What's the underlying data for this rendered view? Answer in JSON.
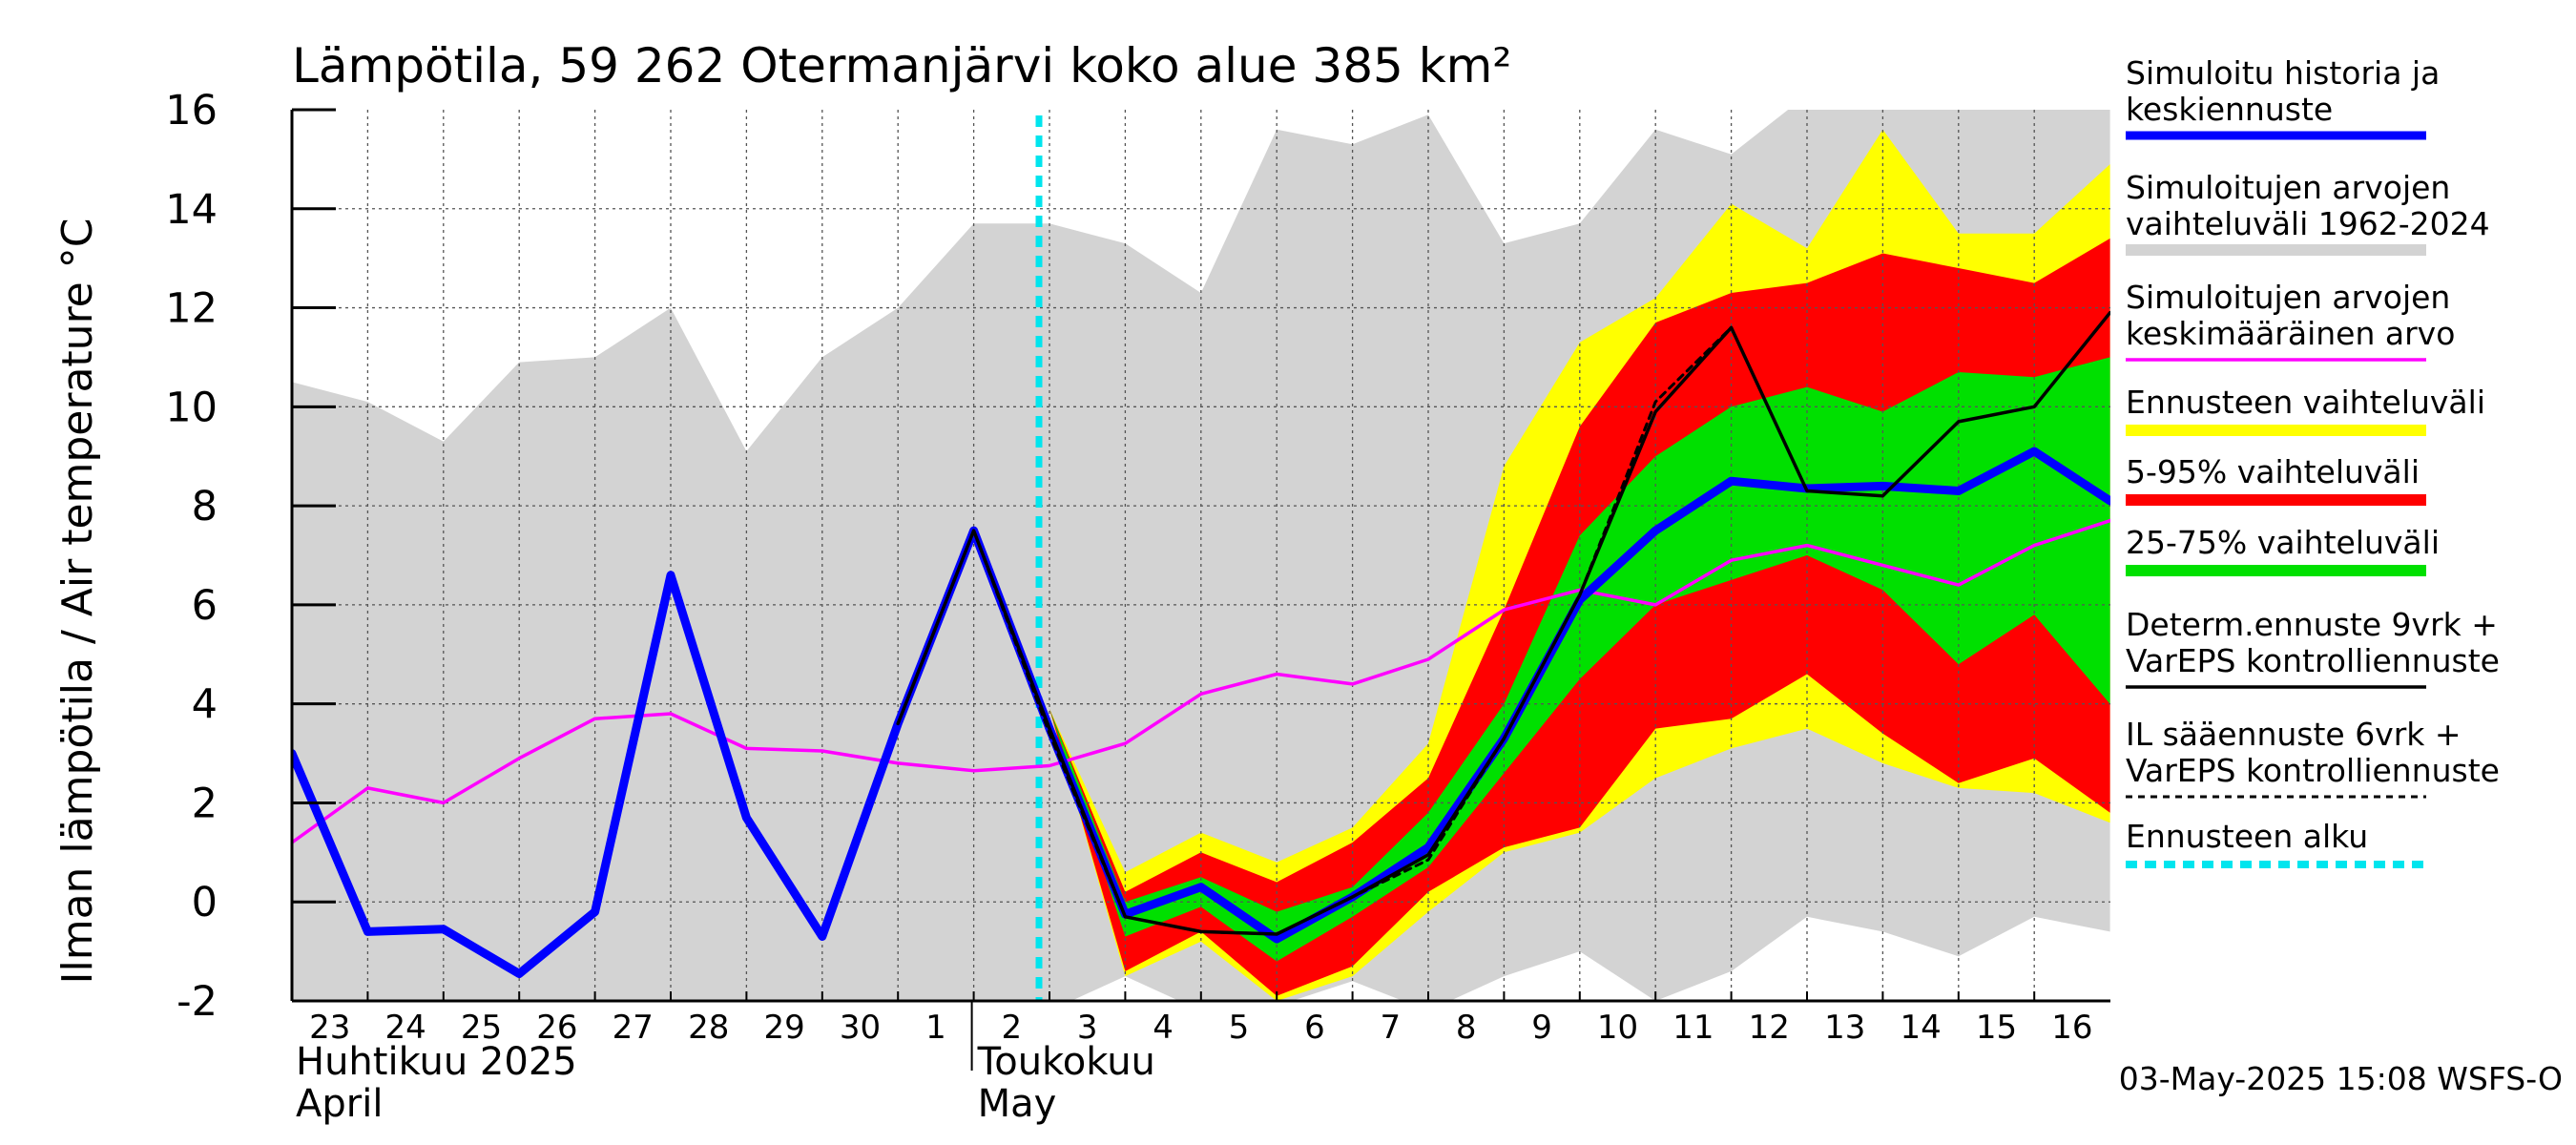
{
  "chart_data": {
    "type": "area",
    "title": "Lämpötila, 59 262 Otermanjärvi koko alue 385 km²",
    "ylabel": "Ilman lämpötila / Air temperature   °C",
    "ylim": [
      -2,
      16
    ],
    "yticks": [
      -2,
      0,
      2,
      4,
      6,
      8,
      10,
      12,
      14,
      16
    ],
    "grid": true,
    "legend_position": "right",
    "x_dates": [
      "2025-04-23",
      "2025-04-24",
      "2025-04-25",
      "2025-04-26",
      "2025-04-27",
      "2025-04-28",
      "2025-04-29",
      "2025-04-30",
      "2025-05-01",
      "2025-05-02",
      "2025-05-03",
      "2025-05-04",
      "2025-05-05",
      "2025-05-06",
      "2025-05-07",
      "2025-05-08",
      "2025-05-09",
      "2025-05-10",
      "2025-05-11",
      "2025-05-12",
      "2025-05-13",
      "2025-05-14",
      "2025-05-15",
      "2025-05-16",
      "2025-05-17"
    ],
    "day_labels": [
      "23",
      "24",
      "25",
      "26",
      "27",
      "28",
      "29",
      "30",
      "1",
      "2",
      "3",
      "4",
      "5",
      "6",
      "7",
      "8",
      "9",
      "10",
      "11",
      "12",
      "13",
      "14",
      "15",
      "16"
    ],
    "month_labels": [
      {
        "line1": "Huhtikuu  2025",
        "line2": "April",
        "date": "2025-04-23"
      },
      {
        "line1": "Toukokuu",
        "line2": "May",
        "date": "2025-05-02"
      }
    ],
    "forecast_start": "2025-05-03",
    "series": [
      {
        "name": "Simuloitujen arvojen vaihteluväli 1962-2024",
        "kind": "band",
        "color": "#d3d3d3",
        "upper": [
          10.5,
          10.1,
          9.3,
          10.9,
          11.0,
          12.0,
          9.1,
          11.0,
          12.0,
          13.7,
          13.7,
          13.3,
          12.3,
          15.6,
          15.3,
          15.9,
          13.3,
          13.7,
          15.6,
          15.1,
          16.3,
          16.3,
          16.3,
          16.3,
          16.3
        ],
        "lower": [
          -2.2,
          -2.2,
          -2.2,
          -2.2,
          -2.2,
          -2.2,
          -2.2,
          -2.2,
          -2.2,
          -2.2,
          -2.2,
          -1.5,
          -2.2,
          -2.1,
          -1.6,
          -2.2,
          -1.5,
          -1.0,
          -2.0,
          -1.4,
          -0.3,
          -0.6,
          -1.1,
          -0.3,
          -0.6
        ]
      },
      {
        "name": "Ennusteen vaihteluväli",
        "kind": "band",
        "color": "#ffff00",
        "upper": [
          null,
          null,
          null,
          null,
          null,
          null,
          null,
          null,
          null,
          null,
          3.9,
          0.6,
          1.4,
          0.8,
          1.5,
          3.2,
          8.8,
          11.3,
          12.2,
          14.1,
          13.2,
          15.6,
          13.5,
          13.5,
          14.9
        ],
        "lower": [
          null,
          null,
          null,
          null,
          null,
          null,
          null,
          null,
          null,
          null,
          3.9,
          -1.5,
          -0.8,
          -2.0,
          -1.5,
          -0.2,
          1.0,
          1.4,
          2.5,
          3.1,
          3.5,
          2.8,
          2.3,
          2.2,
          1.6
        ]
      },
      {
        "name": "5-95% vaihteluväli",
        "kind": "band",
        "color": "#ff0000",
        "upper": [
          null,
          null,
          null,
          null,
          null,
          null,
          null,
          null,
          null,
          null,
          3.9,
          0.2,
          1.0,
          0.4,
          1.2,
          2.5,
          5.9,
          9.6,
          11.7,
          12.3,
          12.5,
          13.1,
          12.8,
          12.5,
          13.4
        ],
        "lower": [
          null,
          null,
          null,
          null,
          null,
          null,
          null,
          null,
          null,
          null,
          3.9,
          -1.4,
          -0.6,
          -1.9,
          -1.3,
          0.2,
          1.1,
          1.5,
          3.5,
          3.7,
          4.6,
          3.4,
          2.4,
          2.9,
          1.8
        ]
      },
      {
        "name": "25-75% vaihteluväli",
        "kind": "band",
        "color": "#00e000",
        "upper": [
          null,
          null,
          null,
          null,
          null,
          null,
          null,
          null,
          null,
          null,
          3.9,
          0.0,
          0.5,
          -0.2,
          0.3,
          1.8,
          4.0,
          7.4,
          9.0,
          10.0,
          10.4,
          9.9,
          10.7,
          10.6,
          11.0
        ],
        "lower": [
          null,
          null,
          null,
          null,
          null,
          null,
          null,
          null,
          null,
          null,
          3.9,
          -0.7,
          -0.1,
          -1.2,
          -0.3,
          0.7,
          2.6,
          4.5,
          6.0,
          6.5,
          7.0,
          6.3,
          4.8,
          5.8,
          4.0
        ]
      },
      {
        "name": "Simuloitujen arvojen keskimääräinen arvo",
        "kind": "line",
        "color": "#ff00ff",
        "values": [
          1.2,
          2.3,
          2.0,
          2.9,
          3.7,
          3.8,
          3.1,
          3.05,
          2.8,
          2.65,
          2.75,
          3.2,
          4.2,
          4.6,
          4.4,
          4.9,
          5.9,
          6.3,
          6.0,
          6.9,
          7.2,
          6.8,
          6.4,
          7.2,
          7.7
        ]
      },
      {
        "name": "Simuloitu historia ja keskiennuste",
        "kind": "line",
        "color": "#0000ff",
        "values": [
          3.0,
          -0.6,
          -0.55,
          -1.45,
          -0.2,
          6.6,
          1.7,
          -0.7,
          3.6,
          7.5,
          3.5,
          -0.25,
          0.3,
          -0.75,
          0.1,
          1.1,
          3.3,
          6.1,
          7.5,
          8.5,
          8.35,
          8.4,
          8.3,
          9.1,
          8.1
        ]
      },
      {
        "name": "Determ.ennuste 9vrk + VarEPS kontrolliennuste",
        "kind": "line",
        "color": "#000000",
        "values": [
          null,
          null,
          null,
          null,
          null,
          null,
          null,
          null,
          3.6,
          7.5,
          3.5,
          -0.3,
          -0.6,
          -0.65,
          0.1,
          0.95,
          3.3,
          6.2,
          9.9,
          11.6,
          8.3,
          8.2,
          9.7,
          10.0,
          11.9
        ]
      },
      {
        "name": "IL sääennuste 6vrk + VarEPS kontrolliennuste",
        "kind": "dashed",
        "color": "#000000",
        "values": [
          null,
          null,
          null,
          null,
          null,
          null,
          null,
          null,
          3.6,
          7.5,
          3.4,
          -0.3,
          -0.6,
          -0.65,
          0.1,
          0.85,
          3.3,
          6.2,
          10.1,
          11.6,
          null,
          null,
          null,
          null,
          null
        ]
      }
    ],
    "legend": [
      {
        "line1": "Simuloitu historia ja",
        "line2": "keskiennuste",
        "color": "#0000ff",
        "style": "line"
      },
      {
        "line1": "Simuloitujen arvojen",
        "line2": "vaihteluväli 1962-2024",
        "color": "#d3d3d3",
        "style": "band"
      },
      {
        "line1": "Simuloitujen arvojen",
        "line2": "keskimääräinen arvo",
        "color": "#ff00ff",
        "style": "thin"
      },
      {
        "line1": "Ennusteen vaihteluväli",
        "line2": "",
        "color": "#ffff00",
        "style": "band"
      },
      {
        "line1": "5-95% vaihteluväli",
        "line2": "",
        "color": "#ff0000",
        "style": "band"
      },
      {
        "line1": "25-75% vaihteluväli",
        "line2": "",
        "color": "#00e000",
        "style": "band"
      },
      {
        "line1": "Determ.ennuste 9vrk +",
        "line2": "VarEPS kontrolliennuste",
        "color": "#000000",
        "style": "thin"
      },
      {
        "line1": "IL sääennuste 6vrk  +",
        "line2": "  VarEPS kontrolliennuste",
        "color": "#000000",
        "style": "dashed"
      },
      {
        "line1": "Ennusteen alku",
        "line2": "",
        "color": "#00e5ee",
        "style": "cyan"
      }
    ]
  },
  "footer": {
    "timestamp": "03-May-2025 15:08 WSFS-O"
  }
}
